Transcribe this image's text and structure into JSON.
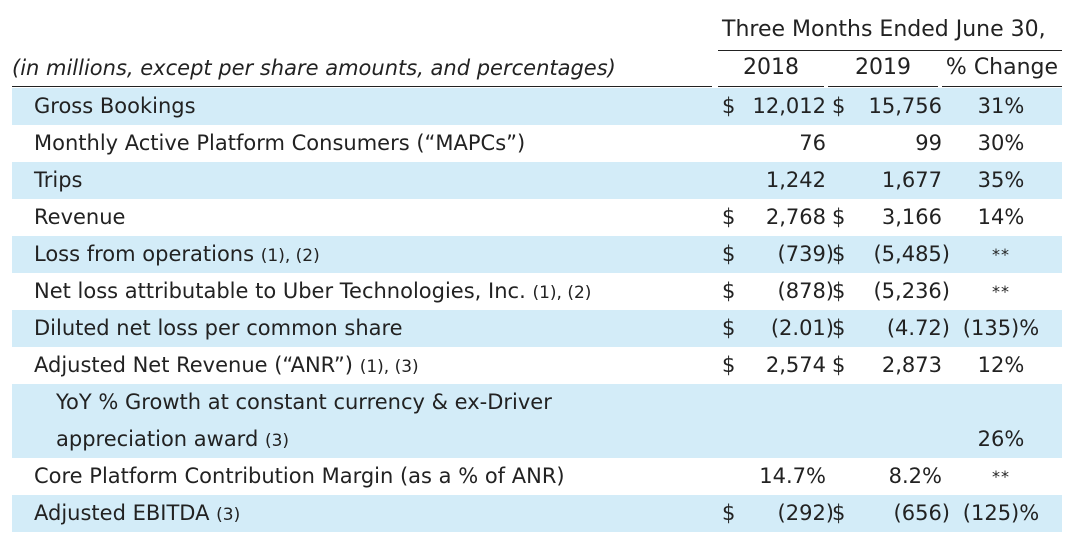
{
  "header": {
    "period": "Three Months Ended June 30,",
    "units_note": "(in millions, except per share amounts, and percentages)",
    "col_2018": "2018",
    "col_2019": "2019",
    "col_change": "% Change"
  },
  "rows": [
    {
      "label": "Gross Bookings",
      "note": "",
      "d2018": "$",
      "v2018": "12,012",
      "d2019": "$",
      "v2019": "15,756",
      "change": "31%"
    },
    {
      "label": "Monthly Active Platform Consumers (“MAPCs”)",
      "note": "",
      "d2018": "",
      "v2018": "76",
      "d2019": "",
      "v2019": "99",
      "change": "30%"
    },
    {
      "label": "Trips",
      "note": "",
      "d2018": "",
      "v2018": "1,242",
      "d2019": "",
      "v2019": "1,677",
      "change": "35%"
    },
    {
      "label": "Revenue",
      "note": "",
      "d2018": "$",
      "v2018": "2,768",
      "d2019": "$",
      "v2019": "3,166",
      "change": "14%"
    },
    {
      "label": "Loss from operations",
      "note": "(1), (2)",
      "d2018": "$",
      "v2018": "(739)",
      "d2019": "$",
      "v2019": "(5,485)",
      "change": "**"
    },
    {
      "label": "Net loss attributable to Uber Technologies, Inc.",
      "note": "(1), (2)",
      "d2018": "$",
      "v2018": "(878)",
      "d2019": "$",
      "v2019": "(5,236)",
      "change": "**"
    },
    {
      "label": "Diluted net loss per common share",
      "note": "",
      "d2018": "$",
      "v2018": "(2.01)",
      "d2019": "$",
      "v2019": "(4.72)",
      "change": "(135)%"
    },
    {
      "label": "Adjusted Net Revenue (“ANR”)",
      "note": "(1), (3)",
      "d2018": "$",
      "v2018": "2,574",
      "d2019": "$",
      "v2019": "2,873",
      "change": "12%"
    },
    {
      "label": "YoY % Growth at constant currency & ex-Driver",
      "label2": "appreciation award",
      "note": "(3)",
      "change": "26%"
    },
    {
      "label": "Core Platform Contribution Margin (as a % of ANR)",
      "note": "",
      "d2018": "",
      "v2018": "14.7%",
      "d2019": "",
      "v2019": "8.2%",
      "change": "**"
    },
    {
      "label": "Adjusted EBITDA",
      "note": "(3)",
      "d2018": "$",
      "v2018": "(292)",
      "d2019": "$",
      "v2019": "(656)",
      "change": "(125)%"
    }
  ]
}
